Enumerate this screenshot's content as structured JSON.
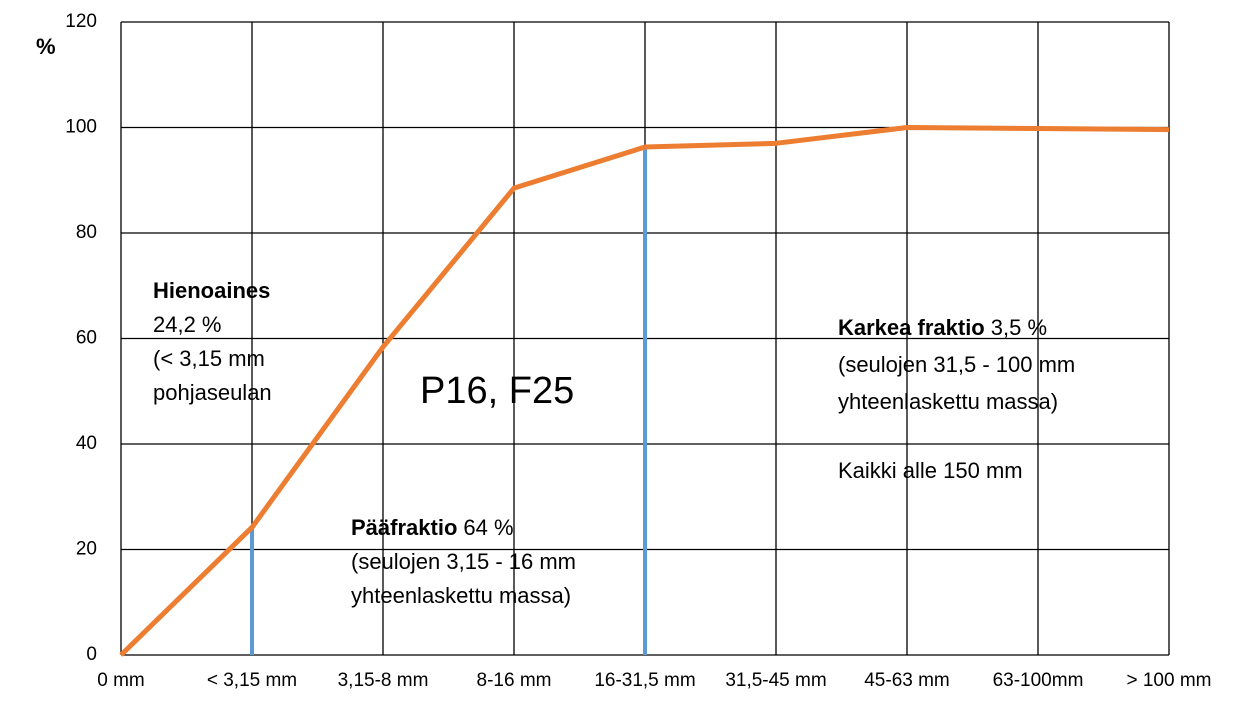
{
  "chart_data": {
    "type": "line",
    "y_axis_label": "%",
    "categories": [
      "0 mm",
      "< 3,15 mm",
      "3,15-8 mm",
      "8-16 mm",
      "16-31,5 mm",
      "31,5-45 mm",
      "45-63 mm",
      "63-100mm",
      "> 100 mm"
    ],
    "series": [
      {
        "color": "#ed7d31",
        "values": [
          0,
          24.2,
          58.4,
          88.5,
          96.3,
          97,
          100,
          99.8,
          99.6
        ]
      }
    ],
    "dividers": {
      "color": "#5b9bd5",
      "at": [
        1,
        4
      ]
    },
    "ylim": [
      0,
      120
    ],
    "yticks": [
      0,
      20,
      40,
      60,
      80,
      100,
      120
    ],
    "grid": true,
    "center_label": "P16, F25",
    "annotations": [
      {
        "title": "Hienoaines",
        "lines": [
          "24,2 %",
          "(< 3,15 mm",
          "pohjaseulan"
        ]
      },
      {
        "title": "Pääfraktio",
        "title_rest": "64 %",
        "lines": [
          "(seulojen 3,15 - 16 mm",
          "yhteenlaskettu massa)"
        ]
      },
      {
        "title": "Karkea fraktio",
        "title_rest": "3,5 %",
        "lines": [
          "(seulojen 31,5 - 100 mm",
          "yhteenlaskettu massa)"
        ]
      },
      {
        "lines": [
          "Kaikki alle 150 mm"
        ]
      }
    ]
  }
}
